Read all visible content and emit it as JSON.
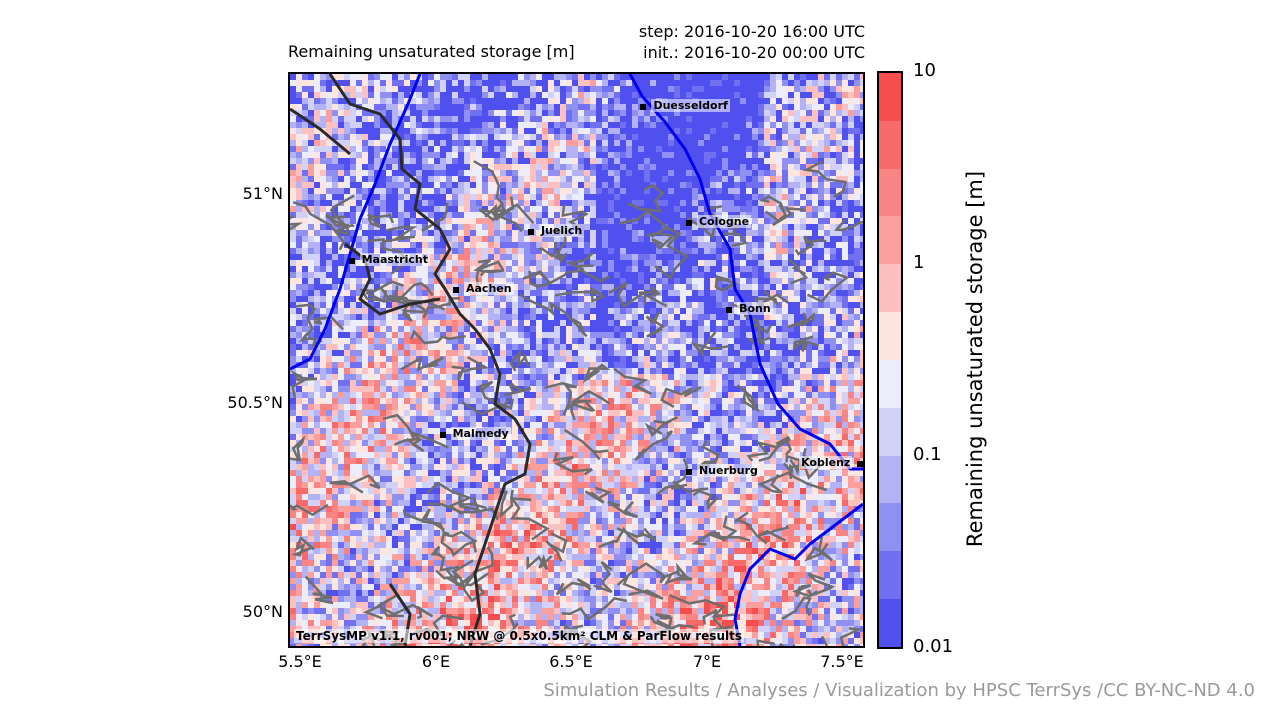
{
  "title_left": "Remaining unsaturated storage [m]",
  "title_right_step": "step: 2016-10-20 16:00 UTC",
  "title_right_init": "init.: 2016-10-20 00:00 UTC",
  "lat_ticks": [
    "51°N",
    "50.5°N",
    "50°N"
  ],
  "lon_ticks": [
    "5.5°E",
    "6°E",
    "6.5°E",
    "7°E",
    "7.5°E"
  ],
  "colorbar": {
    "title": "Remaining unsaturated storage [m]",
    "labels": [
      "10",
      "1",
      "0.1",
      "0.01"
    ],
    "colors": [
      "#f64e4e",
      "#f76a6a",
      "#f98484",
      "#fa9e9e",
      "#fcc0c0",
      "#fde6e0",
      "#ececfb",
      "#d2d2f8",
      "#b2b2f5",
      "#9090f3",
      "#7070f1",
      "#5050ef"
    ]
  },
  "cities": [
    {
      "name": "Duesseldorf",
      "lon": 6.78,
      "lat": 51.22
    },
    {
      "name": "Cologne",
      "lon": 6.95,
      "lat": 50.94
    },
    {
      "name": "Juelich",
      "lon": 6.36,
      "lat": 50.92
    },
    {
      "name": "Maastricht",
      "lon": 5.69,
      "lat": 50.85
    },
    {
      "name": "Aachen",
      "lon": 6.08,
      "lat": 50.78
    },
    {
      "name": "Bonn",
      "lon": 7.1,
      "lat": 50.73
    },
    {
      "name": "Malmedy",
      "lon": 6.03,
      "lat": 50.43
    },
    {
      "name": "Nuerburg",
      "lon": 6.95,
      "lat": 50.34
    },
    {
      "name": "Koblenz",
      "lon": 7.59,
      "lat": 50.36
    }
  ],
  "map_credit": "TerrSysMP v1.1, rv001; NRW @ 0.5x0.5km² CLM & ParFlow results",
  "footer": "Simulation Results / Analyses / Visualization by HPSC TerrSys /CC BY-NC-ND 4.0",
  "colors": {
    "river": "#0000ee",
    "border": "#2a2a2a",
    "contour": "#6e6e6e"
  }
}
